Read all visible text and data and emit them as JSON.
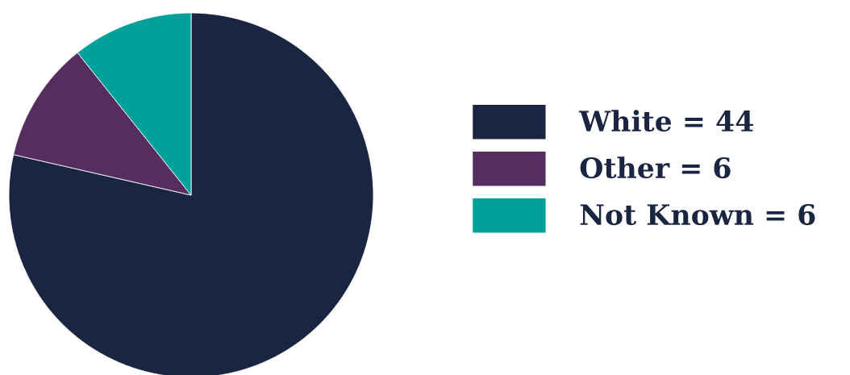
{
  "chart_data": {
    "type": "pie",
    "categories": [
      "White = 44",
      "Other = 6",
      "Not Known = 6"
    ],
    "values": [
      44,
      6,
      6
    ],
    "colors": [
      "#192541",
      "#552d5e",
      "#00a19a"
    ],
    "legend": "right"
  }
}
